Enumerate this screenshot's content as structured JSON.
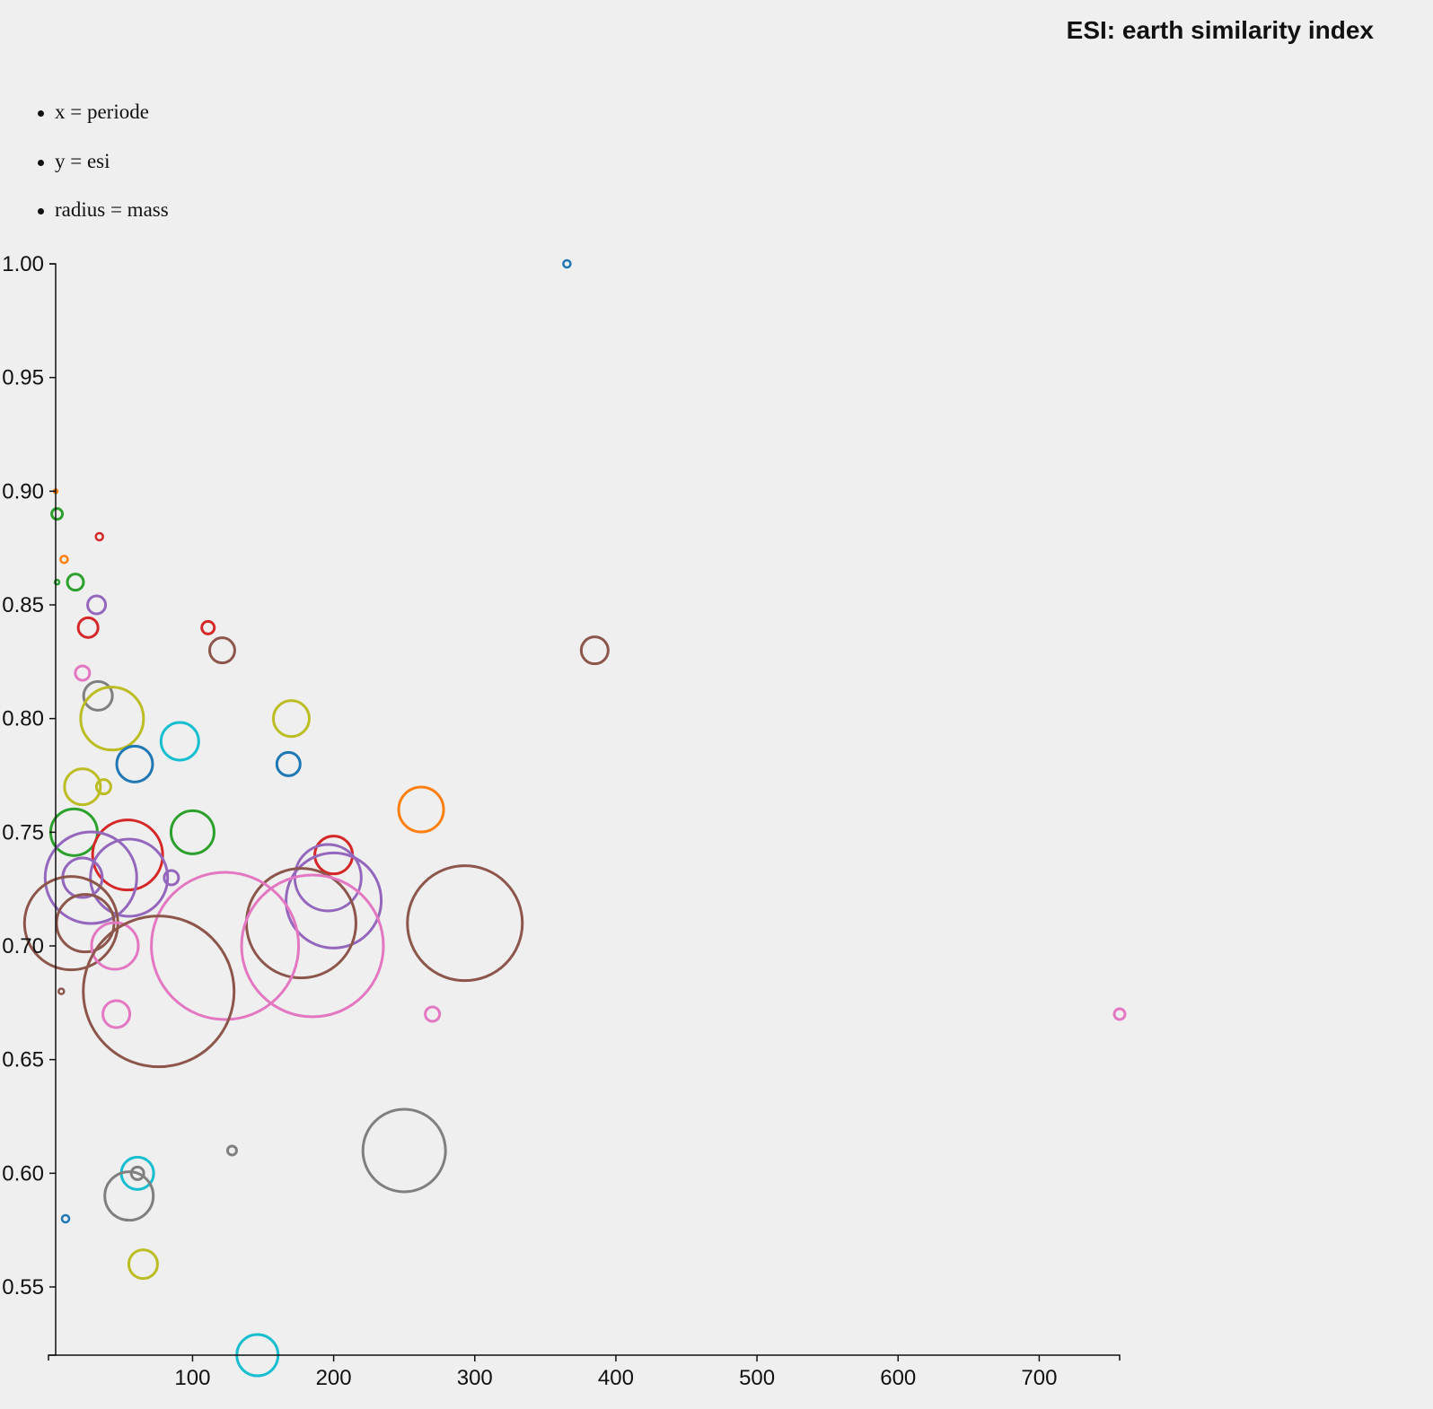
{
  "chart_data": {
    "type": "scatter",
    "title": "ESI: earth similarity index",
    "legend_items": [
      "x = periode",
      "y = esi",
      "radius = mass"
    ],
    "xlabel": "",
    "ylabel": "",
    "xlim": [
      3,
      757
    ],
    "ylim": [
      0.52,
      1.0
    ],
    "x_ticks": [
      100,
      200,
      300,
      400,
      500,
      600,
      700
    ],
    "y_ticks": [
      0.55,
      0.6,
      0.65,
      0.7,
      0.75,
      0.8,
      0.85,
      0.9,
      0.95,
      1.0
    ],
    "grid": false,
    "colors": [
      "#1f77b4",
      "#ff7f0e",
      "#2ca02c",
      "#d62728",
      "#9467bd",
      "#8c564b",
      "#e377c2",
      "#7f7f7f",
      "#bcbd22",
      "#17becf"
    ],
    "points": [
      {
        "x": 365.3,
        "y": 1.0,
        "r": 4,
        "color": "#1f77b4"
      },
      {
        "x": 3,
        "y": 0.9,
        "r": 2,
        "color": "#ff7f0e"
      },
      {
        "x": 4,
        "y": 0.89,
        "r": 6,
        "color": "#2ca02c"
      },
      {
        "x": 34,
        "y": 0.88,
        "r": 4,
        "color": "#d62728"
      },
      {
        "x": 9,
        "y": 0.87,
        "r": 4,
        "color": "#ff7f0e"
      },
      {
        "x": 4,
        "y": 0.86,
        "r": 2.5,
        "color": "#2ca02c"
      },
      {
        "x": 17,
        "y": 0.86,
        "r": 9,
        "color": "#2ca02c"
      },
      {
        "x": 32,
        "y": 0.85,
        "r": 10,
        "color": "#9467bd"
      },
      {
        "x": 26,
        "y": 0.84,
        "r": 11,
        "color": "#d62728"
      },
      {
        "x": 111,
        "y": 0.84,
        "r": 7,
        "color": "#d62728"
      },
      {
        "x": 121,
        "y": 0.83,
        "r": 14,
        "color": "#8c564b"
      },
      {
        "x": 385,
        "y": 0.83,
        "r": 15,
        "color": "#8c564b"
      },
      {
        "x": 22,
        "y": 0.82,
        "r": 8,
        "color": "#e377c2"
      },
      {
        "x": 33,
        "y": 0.81,
        "r": 16,
        "color": "#7f7f7f"
      },
      {
        "x": 43,
        "y": 0.8,
        "r": 35,
        "color": "#bcbd22"
      },
      {
        "x": 170,
        "y": 0.8,
        "r": 20,
        "color": "#bcbd22"
      },
      {
        "x": 91,
        "y": 0.79,
        "r": 21,
        "color": "#17becf"
      },
      {
        "x": 59,
        "y": 0.78,
        "r": 20,
        "color": "#1f77b4"
      },
      {
        "x": 168,
        "y": 0.78,
        "r": 13,
        "color": "#1f77b4"
      },
      {
        "x": 22,
        "y": 0.77,
        "r": 20,
        "color": "#bcbd22"
      },
      {
        "x": 37,
        "y": 0.77,
        "r": 8,
        "color": "#bcbd22"
      },
      {
        "x": 262,
        "y": 0.76,
        "r": 25,
        "color": "#ff7f0e"
      },
      {
        "x": 16,
        "y": 0.75,
        "r": 26,
        "color": "#2ca02c"
      },
      {
        "x": 100,
        "y": 0.75,
        "r": 24,
        "color": "#2ca02c"
      },
      {
        "x": 54,
        "y": 0.74,
        "r": 39,
        "color": "#d62728"
      },
      {
        "x": 200,
        "y": 0.74,
        "r": 21,
        "color": "#d62728"
      },
      {
        "x": 28,
        "y": 0.73,
        "r": 51,
        "color": "#9467bd"
      },
      {
        "x": 22,
        "y": 0.73,
        "r": 22,
        "color": "#9467bd"
      },
      {
        "x": 55,
        "y": 0.73,
        "r": 43,
        "color": "#9467bd"
      },
      {
        "x": 85,
        "y": 0.73,
        "r": 8,
        "color": "#9467bd"
      },
      {
        "x": 196,
        "y": 0.73,
        "r": 37,
        "color": "#9467bd"
      },
      {
        "x": 200,
        "y": 0.72,
        "r": 53,
        "color": "#9467bd"
      },
      {
        "x": 14,
        "y": 0.71,
        "r": 52,
        "color": "#8c564b"
      },
      {
        "x": 24,
        "y": 0.71,
        "r": 32,
        "color": "#8c564b"
      },
      {
        "x": 177,
        "y": 0.71,
        "r": 61,
        "color": "#8c564b"
      },
      {
        "x": 293,
        "y": 0.71,
        "r": 64,
        "color": "#8c564b"
      },
      {
        "x": 45,
        "y": 0.7,
        "r": 26,
        "color": "#e377c2"
      },
      {
        "x": 123,
        "y": 0.7,
        "r": 82,
        "color": "#e377c2"
      },
      {
        "x": 185,
        "y": 0.7,
        "r": 79,
        "color": "#e377c2"
      },
      {
        "x": 7,
        "y": 0.68,
        "r": 3,
        "color": "#8c564b"
      },
      {
        "x": 76,
        "y": 0.68,
        "r": 84,
        "color": "#8c564b"
      },
      {
        "x": 46,
        "y": 0.67,
        "r": 15,
        "color": "#e377c2"
      },
      {
        "x": 270,
        "y": 0.67,
        "r": 8,
        "color": "#e377c2"
      },
      {
        "x": 757,
        "y": 0.67,
        "r": 6,
        "color": "#e377c2"
      },
      {
        "x": 128,
        "y": 0.61,
        "r": 5,
        "color": "#7f7f7f"
      },
      {
        "x": 250,
        "y": 0.61,
        "r": 46,
        "color": "#7f7f7f"
      },
      {
        "x": 61,
        "y": 0.6,
        "r": 18,
        "color": "#17becf"
      },
      {
        "x": 61,
        "y": 0.6,
        "r": 7,
        "color": "#7f7f7f"
      },
      {
        "x": 55,
        "y": 0.59,
        "r": 27,
        "color": "#7f7f7f"
      },
      {
        "x": 10,
        "y": 0.58,
        "r": 4,
        "color": "#1f77b4"
      },
      {
        "x": 65,
        "y": 0.56,
        "r": 16,
        "color": "#bcbd22"
      },
      {
        "x": 146,
        "y": 0.52,
        "r": 23,
        "color": "#17becf"
      }
    ]
  }
}
